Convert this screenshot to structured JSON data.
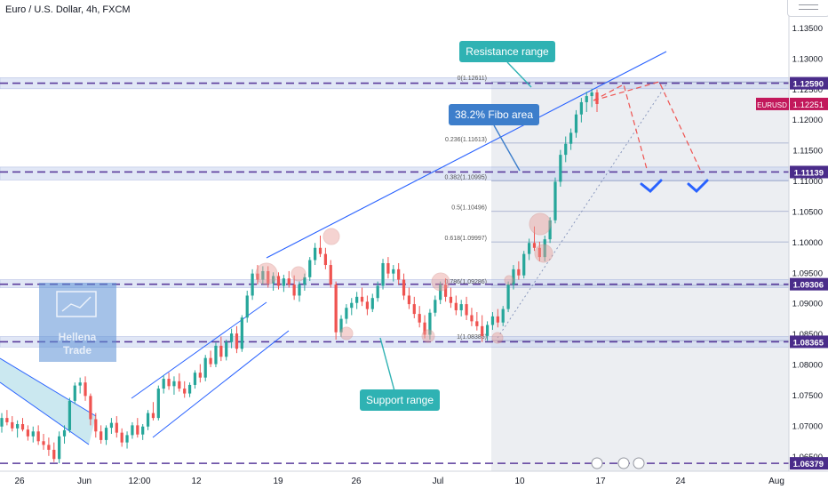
{
  "header": {
    "symbol_title": "Euro / U.S. Dollar, 4h, FXCM"
  },
  "watermark": {
    "brand_line1": "Hellena",
    "brand_line2": "Trade"
  },
  "colors": {
    "up": "#26a69a",
    "down": "#ef5350",
    "level_line": "#5b3c9c",
    "zone_fill": "#c9d4f0",
    "trend_line": "#2962ff",
    "callout_teal": "#2fb2b3",
    "callout_blue": "#3d7ecb",
    "fib_line": "#9aa5c8",
    "projection": "#ef5350",
    "check": "#2962ff",
    "price_tag_purple": "#4a2c8a",
    "price_tag_red": "#c2185b"
  },
  "chart_data": {
    "type": "candlestick",
    "title": "Euro / U.S. Dollar, 4h, FXCM",
    "symbol": "EURUSD",
    "last_price": 1.12251,
    "y_axis": {
      "ticks": [
        "1.13500",
        "1.13000",
        "1.12500",
        "1.12000",
        "1.11500",
        "1.11000",
        "1.10500",
        "1.10000",
        "1.09500",
        "1.09000",
        "1.08500",
        "1.08000",
        "1.07500",
        "1.07000",
        "1.06500"
      ],
      "range": [
        1.0625,
        1.1395
      ]
    },
    "x_axis": {
      "ticks": [
        "26",
        "Jun",
        "12:00",
        "12",
        "19",
        "26",
        "Jul",
        "10",
        "17",
        "24",
        "Aug"
      ]
    },
    "levels": [
      {
        "price": 1.1259,
        "label": "1.12590"
      },
      {
        "price": 1.11139,
        "label": "1.11139"
      },
      {
        "price": 1.09306,
        "label": "1.09306"
      },
      {
        "price": 1.08365,
        "label": "1.08365"
      },
      {
        "price": 1.06379,
        "label": "1.06379"
      }
    ],
    "fibonacci": [
      {
        "ratio": "0",
        "price": "1.12611",
        "label": "0(1.12611)"
      },
      {
        "ratio": "0.236",
        "price": "1.11613",
        "label": "0.236(1.11613)"
      },
      {
        "ratio": "0.382",
        "price": "1.10995",
        "label": "0.382(1.10995)"
      },
      {
        "ratio": "0.5",
        "price": "1.10496",
        "label": "0.5(1.10496)"
      },
      {
        "ratio": "0.618",
        "price": "1.09997",
        "label": "0.618(1.09997)"
      },
      {
        "ratio": "0.786",
        "price": "1.09286",
        "label": "0.786(1.09286)"
      },
      {
        "ratio": "1",
        "price": "1.08385",
        "label": "1(1.08385)"
      }
    ],
    "annotations": [
      {
        "id": "resistance",
        "text": "Resistance range"
      },
      {
        "id": "fibo",
        "text": "38.2% Fibo area"
      },
      {
        "id": "support",
        "text": "Support range"
      }
    ],
    "series": [
      {
        "name": "EURUSD",
        "ohlc": [
          [
            1.0698,
            1.072,
            1.0688,
            1.0712
          ],
          [
            1.0712,
            1.0725,
            1.07,
            1.0705
          ],
          [
            1.0705,
            1.0715,
            1.069,
            1.0695
          ],
          [
            1.0695,
            1.0708,
            1.068,
            1.0702
          ],
          [
            1.0702,
            1.0712,
            1.069,
            1.0693
          ],
          [
            1.0693,
            1.07,
            1.0675,
            1.0682
          ],
          [
            1.0682,
            1.0698,
            1.0672,
            1.069
          ],
          [
            1.069,
            1.07,
            1.0668,
            1.0674
          ],
          [
            1.0674,
            1.0686,
            1.066,
            1.0668
          ],
          [
            1.0668,
            1.068,
            1.065,
            1.066
          ],
          [
            1.066,
            1.0672,
            1.064,
            1.0645
          ],
          [
            1.0645,
            1.069,
            1.0638,
            1.0682
          ],
          [
            1.0682,
            1.07,
            1.067,
            1.0692
          ],
          [
            1.0692,
            1.0745,
            1.0688,
            1.074
          ],
          [
            1.074,
            1.077,
            1.0735,
            1.0765
          ],
          [
            1.0765,
            1.0778,
            1.0752,
            1.077
          ],
          [
            1.077,
            1.078,
            1.074,
            1.0748
          ],
          [
            1.0748,
            1.0752,
            1.07,
            1.071
          ],
          [
            1.071,
            1.072,
            1.068,
            1.069
          ],
          [
            1.069,
            1.07,
            1.067,
            1.0676
          ],
          [
            1.0676,
            1.07,
            1.0668,
            1.0696
          ],
          [
            1.0696,
            1.0712,
            1.0686,
            1.0704
          ],
          [
            1.0704,
            1.0715,
            1.068,
            1.0688
          ],
          [
            1.0688,
            1.0695,
            1.0665,
            1.0672
          ],
          [
            1.0672,
            1.069,
            1.0662,
            1.0684
          ],
          [
            1.0684,
            1.0705,
            1.0678,
            1.07
          ],
          [
            1.07,
            1.0712,
            1.068,
            1.0685
          ],
          [
            1.0685,
            1.0702,
            1.0676,
            1.0698
          ],
          [
            1.0698,
            1.0725,
            1.0692,
            1.072
          ],
          [
            1.072,
            1.0738,
            1.0708,
            1.0712
          ],
          [
            1.0712,
            1.0765,
            1.0708,
            1.076
          ],
          [
            1.076,
            1.0782,
            1.0752,
            1.0776
          ],
          [
            1.0776,
            1.0786,
            1.0758,
            1.0764
          ],
          [
            1.0764,
            1.078,
            1.075,
            1.0772
          ],
          [
            1.0772,
            1.0785,
            1.0755,
            1.076
          ],
          [
            1.076,
            1.0772,
            1.0745,
            1.0752
          ],
          [
            1.0752,
            1.077,
            1.0746,
            1.0766
          ],
          [
            1.0766,
            1.079,
            1.076,
            1.0786
          ],
          [
            1.0786,
            1.08,
            1.077,
            1.0778
          ],
          [
            1.0778,
            1.0815,
            1.0772,
            1.081
          ],
          [
            1.081,
            1.0822,
            1.0795,
            1.08
          ],
          [
            1.08,
            1.0835,
            1.0795,
            1.083
          ],
          [
            1.083,
            1.0845,
            1.0805,
            1.0812
          ],
          [
            1.0812,
            1.084,
            1.0806,
            1.0836
          ],
          [
            1.0836,
            1.0858,
            1.0826,
            1.085
          ],
          [
            1.085,
            1.0862,
            1.0818,
            1.0825
          ],
          [
            1.0825,
            1.088,
            1.082,
            1.0876
          ],
          [
            1.0876,
            1.092,
            1.0868,
            1.0912
          ],
          [
            1.0912,
            1.0955,
            1.0905,
            1.0948
          ],
          [
            1.0948,
            1.0962,
            1.093,
            1.0938
          ],
          [
            1.0938,
            1.096,
            1.093,
            1.0952
          ],
          [
            1.0952,
            1.096,
            1.0925,
            1.0932
          ],
          [
            1.0932,
            1.095,
            1.092,
            1.0944
          ],
          [
            1.0944,
            1.095,
            1.0922,
            1.0928
          ],
          [
            1.0928,
            1.0946,
            1.0918,
            1.094
          ],
          [
            1.094,
            1.0952,
            1.0925,
            1.093
          ],
          [
            1.093,
            1.0945,
            1.0905,
            1.0912
          ],
          [
            1.0912,
            1.0935,
            1.0902,
            1.093
          ],
          [
            1.093,
            1.0948,
            1.092,
            1.0942
          ],
          [
            1.0942,
            1.0975,
            1.0936,
            1.097
          ],
          [
            1.097,
            1.0998,
            1.0962,
            1.099
          ],
          [
            1.099,
            1.101,
            1.0975,
            1.098
          ],
          [
            1.098,
            1.099,
            1.0955,
            1.0962
          ],
          [
            1.0962,
            1.097,
            1.0925,
            1.093
          ],
          [
            1.093,
            1.0935,
            1.084,
            1.0852
          ],
          [
            1.0852,
            1.088,
            1.0845,
            1.0874
          ],
          [
            1.0874,
            1.0898,
            1.0866,
            1.0892
          ],
          [
            1.0892,
            1.0908,
            1.088,
            1.09
          ],
          [
            1.09,
            1.0918,
            1.089,
            1.091
          ],
          [
            1.091,
            1.0925,
            1.0895,
            1.0902
          ],
          [
            1.0902,
            1.0912,
            1.088,
            1.089
          ],
          [
            1.089,
            1.0915,
            1.0885,
            1.0908
          ],
          [
            1.0908,
            1.0935,
            1.0902,
            1.0928
          ],
          [
            1.0928,
            1.0972,
            1.0922,
            1.0965
          ],
          [
            1.0965,
            1.0975,
            1.094,
            1.0948
          ],
          [
            1.0948,
            1.0962,
            1.0935,
            1.0955
          ],
          [
            1.0955,
            1.0965,
            1.093,
            1.0938
          ],
          [
            1.0938,
            1.0948,
            1.0905,
            1.0912
          ],
          [
            1.0912,
            1.0925,
            1.089,
            1.0898
          ],
          [
            1.0898,
            1.091,
            1.0875,
            1.0882
          ],
          [
            1.0882,
            1.0895,
            1.086,
            1.0868
          ],
          [
            1.0868,
            1.088,
            1.0842,
            1.0848
          ],
          [
            1.0848,
            1.089,
            1.084,
            1.0884
          ],
          [
            1.0884,
            1.0912,
            1.0878,
            1.0905
          ],
          [
            1.0905,
            1.0935,
            1.0898,
            1.093
          ],
          [
            1.093,
            1.094,
            1.0902,
            1.091
          ],
          [
            1.091,
            1.0925,
            1.0892,
            1.09
          ],
          [
            1.09,
            1.0912,
            1.088,
            1.0888
          ],
          [
            1.0888,
            1.0905,
            1.0878,
            1.0898
          ],
          [
            1.0898,
            1.091,
            1.0872,
            1.088
          ],
          [
            1.088,
            1.0892,
            1.0862,
            1.087
          ],
          [
            1.087,
            1.0885,
            1.0855,
            1.0862
          ],
          [
            1.0862,
            1.088,
            1.0836,
            1.0846
          ],
          [
            1.0846,
            1.087,
            1.0838,
            1.0864
          ],
          [
            1.0864,
            1.0885,
            1.0856,
            1.0878
          ],
          [
            1.0878,
            1.089,
            1.086,
            1.0868
          ],
          [
            1.0868,
            1.0895,
            1.0862,
            1.089
          ],
          [
            1.089,
            1.0935,
            1.0885,
            1.093
          ],
          [
            1.093,
            1.0962,
            1.0922,
            1.0955
          ],
          [
            1.0955,
            1.0968,
            1.0938,
            1.0945
          ],
          [
            1.0945,
            1.0985,
            1.094,
            1.098
          ],
          [
            1.098,
            1.1005,
            1.097,
            1.0998
          ],
          [
            1.0998,
            1.1025,
            1.0985,
            1.099
          ],
          [
            1.099,
            1.1,
            1.0968,
            1.0975
          ],
          [
            1.0975,
            1.101,
            1.0968,
            1.1004
          ],
          [
            1.1004,
            1.104,
            1.0998,
            1.1035
          ],
          [
            1.1035,
            1.1105,
            1.103,
            1.1098
          ],
          [
            1.1098,
            1.115,
            1.109,
            1.1142
          ],
          [
            1.1142,
            1.1172,
            1.113,
            1.116
          ],
          [
            1.116,
            1.1185,
            1.115,
            1.1178
          ],
          [
            1.1178,
            1.1215,
            1.117,
            1.1208
          ],
          [
            1.1208,
            1.1235,
            1.1195,
            1.1228
          ],
          [
            1.1228,
            1.1245,
            1.1212,
            1.1238
          ],
          [
            1.1238,
            1.125,
            1.122,
            1.1244
          ],
          [
            1.1244,
            1.1249,
            1.1212,
            1.1225
          ]
        ]
      }
    ]
  }
}
